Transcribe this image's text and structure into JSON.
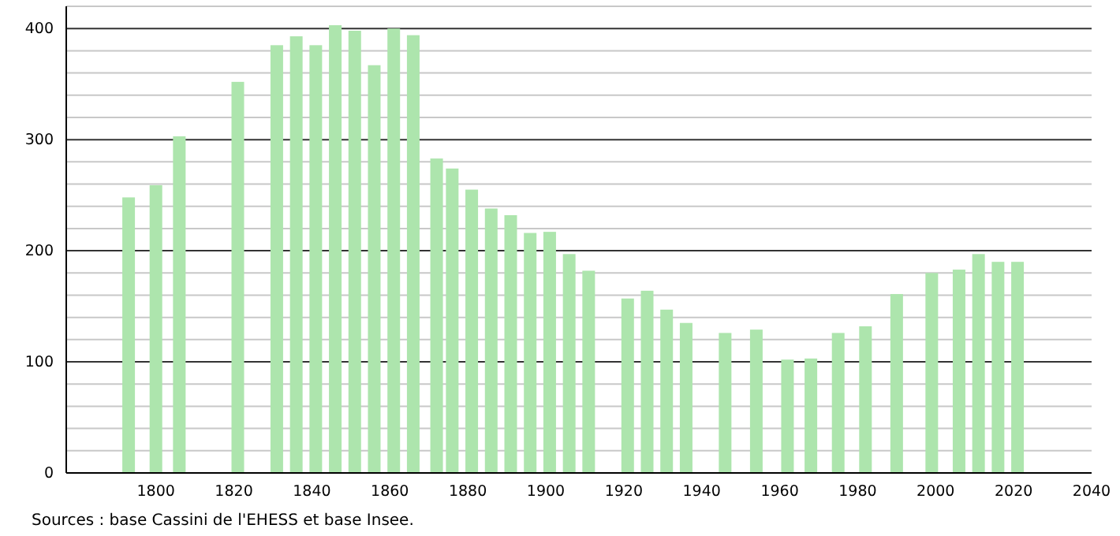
{
  "chart_data": {
    "type": "bar",
    "x": [
      1793,
      1800,
      1806,
      1821,
      1831,
      1836,
      1841,
      1846,
      1851,
      1856,
      1861,
      1866,
      1872,
      1876,
      1881,
      1886,
      1891,
      1896,
      1901,
      1906,
      1911,
      1921,
      1926,
      1931,
      1936,
      1946,
      1954,
      1962,
      1968,
      1975,
      1982,
      1990,
      1999,
      2006,
      2011,
      2016,
      2021
    ],
    "values": [
      248,
      259,
      303,
      352,
      385,
      393,
      385,
      403,
      398,
      367,
      400,
      394,
      283,
      274,
      255,
      238,
      232,
      216,
      217,
      197,
      182,
      157,
      164,
      147,
      135,
      126,
      129,
      102,
      103,
      126,
      132,
      161,
      180,
      183,
      197,
      190,
      190
    ],
    "color": "#ade5ad",
    "xlim": [
      1777,
      2040
    ],
    "xticks": [
      1800,
      1820,
      1840,
      1860,
      1880,
      1900,
      1920,
      1940,
      1960,
      1980,
      2000,
      2020,
      2040
    ],
    "ylim": [
      0,
      420
    ],
    "yticks": [
      0,
      {
        "value": 20,
        "label": null
      },
      {
        "value": 40,
        "label": null
      },
      {
        "value": 60,
        "label": null
      },
      {
        "value": 80,
        "label": null
      },
      100,
      {
        "value": 120,
        "label": null
      },
      {
        "value": 140,
        "label": null
      },
      {
        "value": 160,
        "label": null
      },
      {
        "value": 180,
        "label": null
      },
      200,
      {
        "value": 220,
        "label": null
      },
      {
        "value": 240,
        "label": null
      },
      {
        "value": 260,
        "label": null
      },
      {
        "value": 280,
        "label": null
      },
      300,
      {
        "value": 320,
        "label": null
      },
      {
        "value": 340,
        "label": null
      },
      {
        "value": 360,
        "label": null
      },
      {
        "value": 380,
        "label": null
      },
      400,
      {
        "value": 420,
        "label": null
      }
    ],
    "grid": "y",
    "annotations": [
      "Sources : base Cassini de l'EHESS et base Insee."
    ]
  }
}
